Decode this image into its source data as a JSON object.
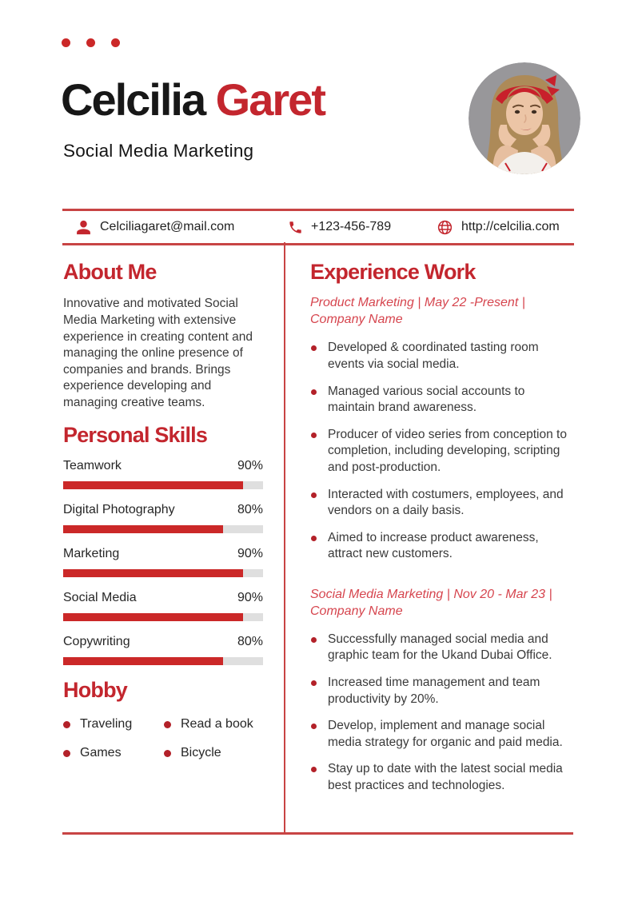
{
  "colors": {
    "accent": "#c3262e",
    "accent_italic": "#d6454e",
    "line": "#c84444",
    "bar_fill": "#cb2828",
    "bar_track": "#dfdfdf",
    "bullet": "#b32129"
  },
  "header": {
    "first_name": "Celcilia",
    "last_name": "Garet",
    "job_title": "Social Media Marketing"
  },
  "contact": {
    "email": {
      "icon": "person-icon",
      "value": "Celciliagaret@mail.com"
    },
    "phone": {
      "icon": "phone-icon",
      "value": "+123-456-789"
    },
    "website": {
      "icon": "globe-icon",
      "value": "http://celcilia.com"
    }
  },
  "about": {
    "heading": "About Me",
    "text": "Innovative and motivated Social Media Marketing with extensive experience in creating content and managing the online presence of companies and brands. Brings experience developing and managing creative teams."
  },
  "skills": {
    "heading": "Personal Skills",
    "items": [
      {
        "label": "Teamwork",
        "percent_label": "90%",
        "value": 90
      },
      {
        "label": "Digital Photography",
        "percent_label": "80%",
        "value": 80
      },
      {
        "label": "Marketing",
        "percent_label": "90%",
        "value": 90
      },
      {
        "label": "Social Media",
        "percent_label": "90%",
        "value": 90
      },
      {
        "label": "Copywriting",
        "percent_label": "80%",
        "value": 80
      }
    ]
  },
  "hobby": {
    "heading": "Hobby",
    "items": [
      "Traveling",
      "Read a book",
      "Games",
      "Bicycle"
    ]
  },
  "experience": {
    "heading": "Experience Work",
    "jobs": [
      {
        "title": "Product Marketing | May 22 -Present | Company Name",
        "bullets": [
          "Developed & coordinated tasting room events via social media.",
          "Managed various social accounts to maintain brand awareness.",
          "Producer of video series from conception to completion, including developing, scripting and post-production.",
          "Interacted with costumers, employees, and vendors on a daily basis.",
          "Aimed to increase product awareness, attract new customers."
        ]
      },
      {
        "title": "Social Media Marketing | Nov 20 - Mar 23 | Company Name",
        "bullets": [
          "Successfully managed social media and graphic team for the Ukand Dubai Office.",
          "Increased time management and team productivity by 20%.",
          "Develop, implement and manage social media strategy for organic and paid media.",
          "Stay up to date with the latest social media best practices and technologies."
        ]
      }
    ]
  }
}
